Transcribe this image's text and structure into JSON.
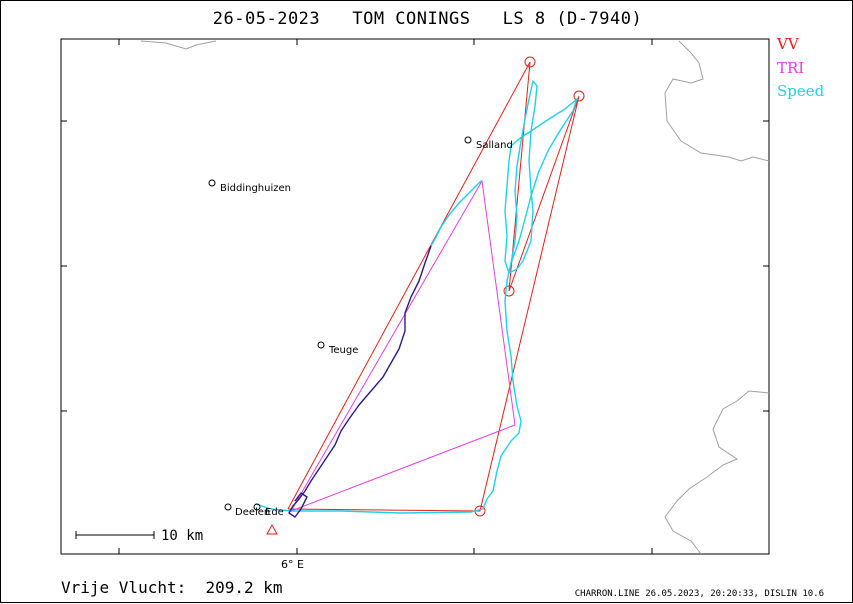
{
  "title": "26-05-2023   TOM CONINGS   LS 8 (D-7940)",
  "legend": [
    {
      "label": "VV",
      "color": "#e0201a"
    },
    {
      "label": "TRI",
      "color": "#e040e0"
    },
    {
      "label": "Speed",
      "color": "#20d0e8"
    }
  ],
  "places": [
    {
      "name": "Salland"
    },
    {
      "name": "Biddinghuizen"
    },
    {
      "name": "Teuge"
    },
    {
      "name": "Deelen"
    },
    {
      "name": "Ede"
    }
  ],
  "axis_label": "6° E",
  "scale_label": "10 km",
  "footer_left": "Vrije Vlucht:  209.2 km",
  "footer_right": "CHARRON.LINE 26.05.2023, 20:20:33, DISLIN 10.6",
  "colors": {
    "frame": "#000000",
    "border": "#a0a0a0",
    "vv": "#e0201a",
    "tri": "#e040e0",
    "speed": "#20d0e8",
    "slow": "#2a1a8a"
  }
}
